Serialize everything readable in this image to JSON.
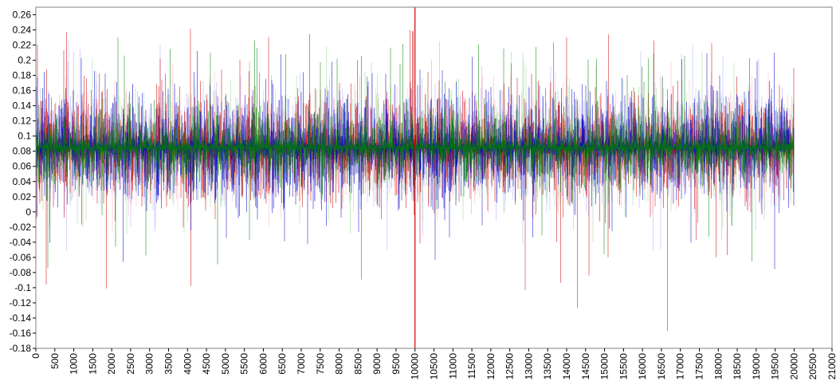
{
  "chart_data": {
    "type": "line",
    "title": "",
    "xlabel": "",
    "ylabel": "",
    "xlim": [
      0,
      21000
    ],
    "ylim": [
      -0.18,
      0.27
    ],
    "x_ticks": [
      0,
      500,
      1000,
      1500,
      2000,
      2500,
      3000,
      3500,
      4000,
      4500,
      5000,
      5500,
      6000,
      6500,
      7000,
      7500,
      8000,
      8500,
      9000,
      9500,
      10000,
      10500,
      11000,
      11500,
      12000,
      12500,
      13000,
      13500,
      14000,
      14500,
      15000,
      15500,
      16000,
      16500,
      17000,
      17500,
      18000,
      18500,
      19000,
      19500,
      20000,
      20500,
      21000
    ],
    "y_ticks": [
      -0.18,
      -0.16,
      -0.14,
      -0.12,
      -0.1,
      -0.08,
      -0.06,
      -0.04,
      -0.02,
      0,
      0.02,
      0.04,
      0.06,
      0.08,
      0.1,
      0.12,
      0.14,
      0.16,
      0.18,
      0.2,
      0.22,
      0.24,
      0.26
    ],
    "x_tick_labels": [
      "0",
      "500",
      "1000",
      "1500",
      "2000",
      "2500",
      "3000",
      "3500",
      "4000",
      "4500",
      "5000",
      "5500",
      "6000",
      "6500",
      "7000",
      "7500",
      "8000",
      "8500",
      "9000",
      "9500",
      "10000",
      "10500",
      "11000",
      "11500",
      "12000",
      "12500",
      "13000",
      "13500",
      "14000",
      "14500",
      "15000",
      "15500",
      "16000",
      "16500",
      "17000",
      "17500",
      "18000",
      "18500",
      "19000",
      "19500",
      "20000",
      "20500",
      "21000"
    ],
    "y_tick_labels": [
      "-0.18",
      "-0.16",
      "-0.14",
      "-0.12",
      "-0.1",
      "-0.08",
      "-0.06",
      "-0.04",
      "-0.02",
      "0",
      "0.02",
      "0.04",
      "0.06",
      "0.08",
      "0.1",
      "0.12",
      "0.14",
      "0.16",
      "0.18",
      "0.2",
      "0.22",
      "0.24",
      "0.26"
    ],
    "grid": false,
    "legend": "none",
    "series": [
      {
        "color": "#ffb6c1",
        "x_range": [
          0,
          20000
        ],
        "mean": 0.085,
        "typical_range": [
          0.03,
          0.15
        ],
        "extremes": [
          -0.03,
          0.2
        ]
      },
      {
        "color": "#b0b0ff",
        "x_range": [
          0,
          20000
        ],
        "mean": 0.085,
        "typical_range": [
          0.03,
          0.15
        ],
        "extremes": [
          -0.06,
          0.23
        ]
      },
      {
        "color": "#a0d8a0",
        "x_range": [
          0,
          20000
        ],
        "mean": 0.085,
        "typical_range": [
          0.03,
          0.15
        ],
        "extremes": [
          -0.05,
          0.22
        ]
      },
      {
        "color": "#cc0000",
        "x_range": [
          0,
          20000
        ],
        "mean": 0.085,
        "typical_range": [
          0.02,
          0.15
        ],
        "extremes": [
          -0.158,
          0.243
        ]
      },
      {
        "color": "#0000cc",
        "x_range": [
          0,
          20000
        ],
        "mean": 0.085,
        "typical_range": [
          0.02,
          0.16
        ],
        "extremes": [
          -0.076,
          0.215
        ]
      },
      {
        "color": "#008000",
        "x_range": [
          0,
          20000
        ],
        "mean": 0.085,
        "typical_range": [
          0.04,
          0.13
        ],
        "extremes": [
          -0.1,
          0.238
        ]
      }
    ],
    "annotations": [
      {
        "type": "vertical-line",
        "x": 10000,
        "color": "#cc0000"
      }
    ]
  }
}
